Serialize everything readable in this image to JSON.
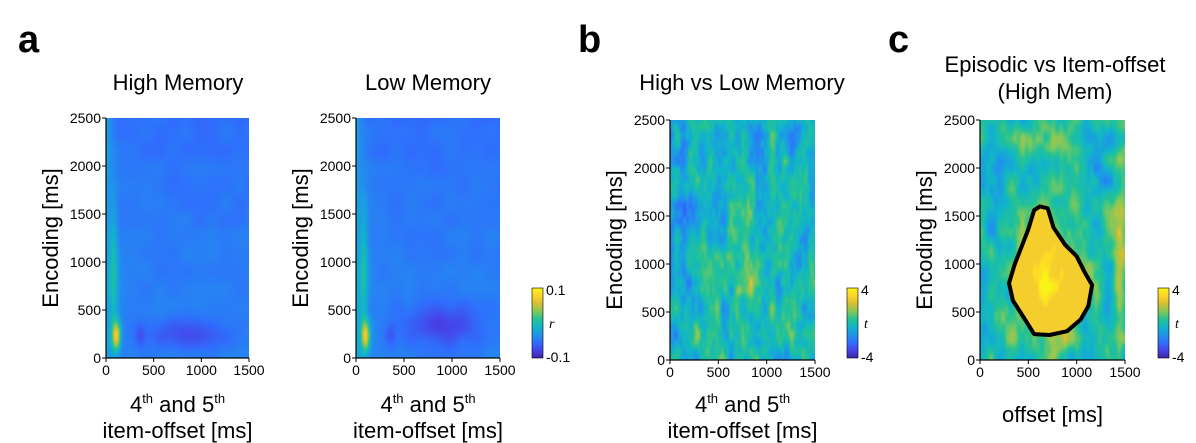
{
  "panel_letters": [
    "a",
    "b",
    "c"
  ],
  "colors": {
    "colormap": [
      "#3e26a8",
      "#4743e9",
      "#2f6ffd",
      "#1f95e9",
      "#11b5c9",
      "#25c393",
      "#85c85a",
      "#d6be32",
      "#fdd42b",
      "#f9f416"
    ],
    "contour": "#000000",
    "text": "#000000"
  },
  "chart_data": [
    {
      "type": "heatmap",
      "panel": "a",
      "title": "High Memory",
      "xlabel_parts": [
        "4",
        "th",
        " and 5",
        "th",
        "item-offset [ms]"
      ],
      "ylabel": "Encoding [ms]",
      "xlim": [
        0,
        1500
      ],
      "ylim": [
        0,
        2500
      ],
      "xticks": [
        0,
        500,
        1000,
        1500
      ],
      "yticks": [
        0,
        500,
        1000,
        1500,
        2000,
        2500
      ],
      "colorbar": {
        "min": -0.1,
        "max": 0.1,
        "label": "r",
        "tick_labels": [
          "0.1",
          "r",
          "-0.1"
        ]
      },
      "pattern": "memory"
    },
    {
      "type": "heatmap",
      "panel": "a",
      "title": "Low Memory",
      "xlabel_parts": [
        "4",
        "th",
        " and 5",
        "th",
        "item-offset [ms]"
      ],
      "ylabel": "Encoding [ms]",
      "xlim": [
        0,
        1500
      ],
      "ylim": [
        0,
        2500
      ],
      "xticks": [
        0,
        500,
        1000,
        1500
      ],
      "yticks": [
        0,
        500,
        1000,
        1500,
        2000,
        2500
      ],
      "pattern": "memory_low"
    },
    {
      "type": "heatmap",
      "panel": "b",
      "title": "High vs Low Memory",
      "xlabel_parts": [
        "4",
        "th",
        " and 5",
        "th",
        "item-offset [ms]"
      ],
      "ylabel": "Encoding [ms]",
      "xlim": [
        0,
        1500
      ],
      "ylim": [
        0,
        2500
      ],
      "xticks": [
        0,
        500,
        1000,
        1500
      ],
      "yticks": [
        0,
        500,
        1000,
        1500,
        2000,
        2500
      ],
      "colorbar": {
        "min": -4,
        "max": 4,
        "label": "t",
        "tick_labels": [
          "4",
          "t",
          "-4"
        ]
      },
      "pattern": "contrast"
    },
    {
      "type": "heatmap",
      "panel": "c",
      "title_lines": [
        "Episodic vs Item-offset",
        "(High Mem)"
      ],
      "xlabel": "offset [ms]",
      "ylabel": "Encoding [ms]",
      "xlim": [
        0,
        1500
      ],
      "ylim": [
        0,
        2500
      ],
      "xticks": [
        0,
        500,
        1000,
        1500
      ],
      "yticks": [
        0,
        500,
        1000,
        1500,
        2000,
        2500
      ],
      "colorbar": {
        "min": -4,
        "max": 4,
        "label": "t",
        "tick_labels": [
          "4",
          "t",
          "-4"
        ]
      },
      "pattern": "episodic",
      "cluster_contour": [
        [
          620,
          1600
        ],
        [
          700,
          1580
        ],
        [
          760,
          1380
        ],
        [
          880,
          1200
        ],
        [
          1000,
          1080
        ],
        [
          1080,
          920
        ],
        [
          1160,
          780
        ],
        [
          1120,
          560
        ],
        [
          1040,
          420
        ],
        [
          900,
          300
        ],
        [
          720,
          260
        ],
        [
          560,
          270
        ],
        [
          460,
          430
        ],
        [
          340,
          620
        ],
        [
          300,
          800
        ],
        [
          360,
          1000
        ],
        [
          430,
          1180
        ],
        [
          500,
          1360
        ],
        [
          560,
          1560
        ]
      ]
    }
  ]
}
